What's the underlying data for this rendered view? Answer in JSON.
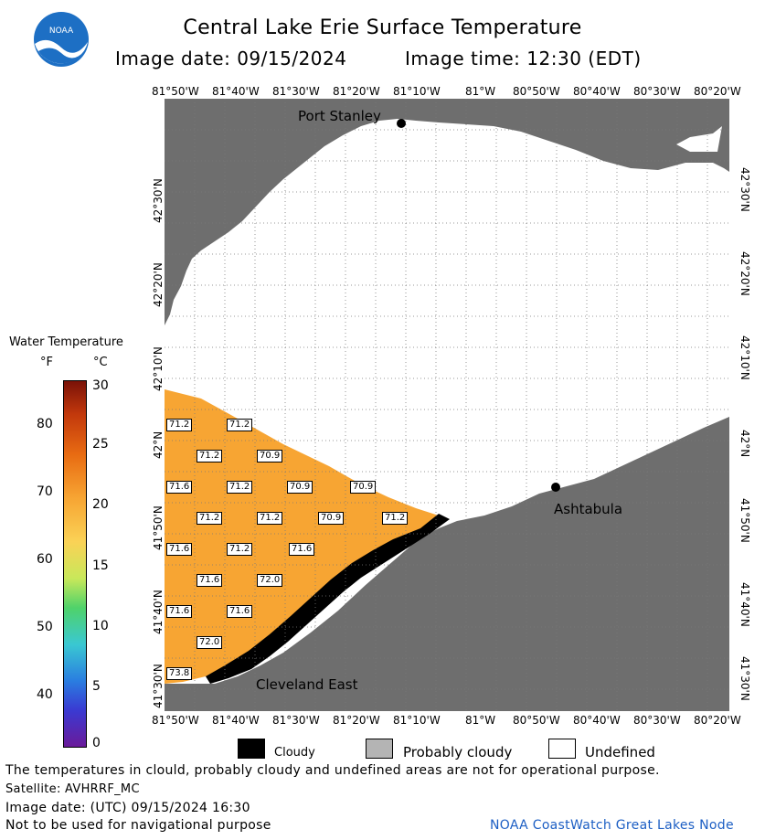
{
  "header": {
    "title": "Central Lake Erie Surface Temperature",
    "image_date": "Image date: 09/15/2024",
    "image_time": "Image time: 12:30 (EDT)",
    "logo_text": "NOAA"
  },
  "map": {
    "lon_labels": [
      "81°50'W",
      "81°40'W",
      "81°30'W",
      "81°20'W",
      "81°10'W",
      "81°W",
      "80°50'W",
      "80°40'W",
      "80°30'W",
      "80°20'W"
    ],
    "lat_labels": [
      "42°30'N",
      "42°20'N",
      "42°10'N",
      "42°N",
      "41°50'N",
      "41°40'N",
      "41°30'N"
    ],
    "cities": {
      "port_stanley": "Port Stanley",
      "ashtabula": "Ashtabula",
      "cleveland_east": "Cleveland East"
    },
    "temperature_labels": [
      "71.2",
      "71.2",
      "71.2",
      "70.9",
      "71.6",
      "71.2",
      "70.9",
      "70.9",
      "71.2",
      "71.2",
      "70.9",
      "71.2",
      "71.6",
      "71.2",
      "71.6",
      "71.6",
      "72.0",
      "71.6",
      "71.6",
      "72.0",
      "73.8"
    ],
    "colors": {
      "land": "#6e6e6e",
      "water_undefined": "#ffffff",
      "water_warm": "#f7a533",
      "cloud": "#000000",
      "grid": "#7a7a7a"
    }
  },
  "colorbar": {
    "title": "Water Temperature",
    "unit_f": "°F",
    "unit_c": "°C",
    "f_ticks": [
      "80",
      "70",
      "60",
      "50",
      "40"
    ],
    "c_ticks": [
      "30",
      "25",
      "20",
      "15",
      "10",
      "5",
      "0"
    ]
  },
  "legend": {
    "cloudy": "Cloudy",
    "probably_cloudy": "Probably cloudy",
    "undefined": "Undefined"
  },
  "footer": {
    "disclaimer": "The temperatures in clould, probably cloudy and undefined areas are not for operational purpose.",
    "satellite": "Satellite: AVHRRF_MC",
    "image_date_utc": "Image date: (UTC) 09/15/2024  16:30",
    "navigation": "Not to be used for navigational purpose",
    "credit": "NOAA CoastWatch Great Lakes Node"
  }
}
